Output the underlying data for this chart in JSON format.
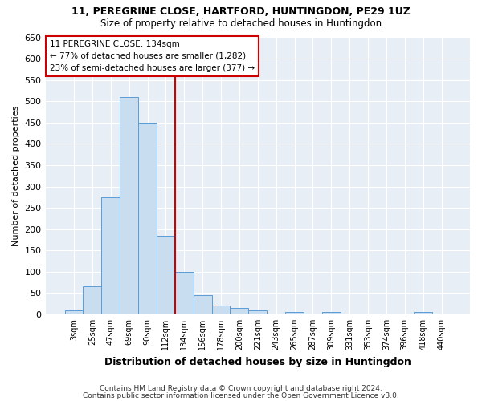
{
  "title1": "11, PEREGRINE CLOSE, HARTFORD, HUNTINGDON, PE29 1UZ",
  "title2": "Size of property relative to detached houses in Huntingdon",
  "xlabel": "Distribution of detached houses by size in Huntingdon",
  "ylabel": "Number of detached properties",
  "annotation_line1": "11 PEREGRINE CLOSE: 134sqm",
  "annotation_line2": "← 77% of detached houses are smaller (1,282)",
  "annotation_line3": "23% of semi-detached houses are larger (377) →",
  "footer1": "Contains HM Land Registry data © Crown copyright and database right 2024.",
  "footer2": "Contains public sector information licensed under the Open Government Licence v3.0.",
  "bar_color": "#c9ddf0",
  "bar_edge_color": "#5b9bd5",
  "categories": [
    "3sqm",
    "25sqm",
    "47sqm",
    "69sqm",
    "90sqm",
    "112sqm",
    "134sqm",
    "156sqm",
    "178sqm",
    "200sqm",
    "221sqm",
    "243sqm",
    "265sqm",
    "287sqm",
    "309sqm",
    "331sqm",
    "353sqm",
    "374sqm",
    "396sqm",
    "418sqm",
    "440sqm"
  ],
  "values": [
    10,
    65,
    275,
    510,
    450,
    185,
    100,
    45,
    20,
    15,
    10,
    0,
    5,
    0,
    5,
    0,
    0,
    0,
    0,
    5,
    0
  ],
  "ylim": [
    0,
    650
  ],
  "yticks": [
    0,
    50,
    100,
    150,
    200,
    250,
    300,
    350,
    400,
    450,
    500,
    550,
    600,
    650
  ],
  "background_color": "#ffffff",
  "plot_bg_color": "#e8eef5",
  "grid_color": "#ffffff",
  "highlight_color": "#cc0000",
  "highlight_bar_index": 6,
  "title1_fontsize": 9,
  "title2_fontsize": 8.5,
  "ylabel_fontsize": 8,
  "xlabel_fontsize": 9
}
